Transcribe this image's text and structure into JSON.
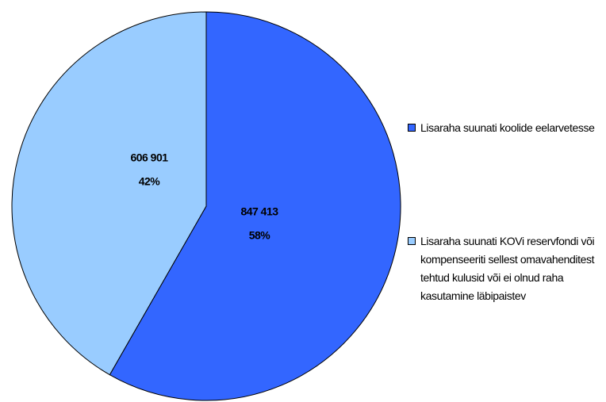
{
  "chart_data": {
    "type": "pie",
    "categories": [
      "Lisaraha suunati koolide eelarvetesse",
      "Lisaraha suunati KOVi reservfondi või kompenseeriti sellest omavahenditest tehtud kulusid või ei olnud raha kasutamine läbipaistev"
    ],
    "values": [
      847413,
      606901
    ],
    "value_labels": [
      "847 413",
      "606 901"
    ],
    "percentages": [
      58,
      42
    ],
    "percent_labels": [
      "58%",
      "42%"
    ],
    "colors": [
      "#3366ff",
      "#99ccff"
    ],
    "legend": "right"
  }
}
